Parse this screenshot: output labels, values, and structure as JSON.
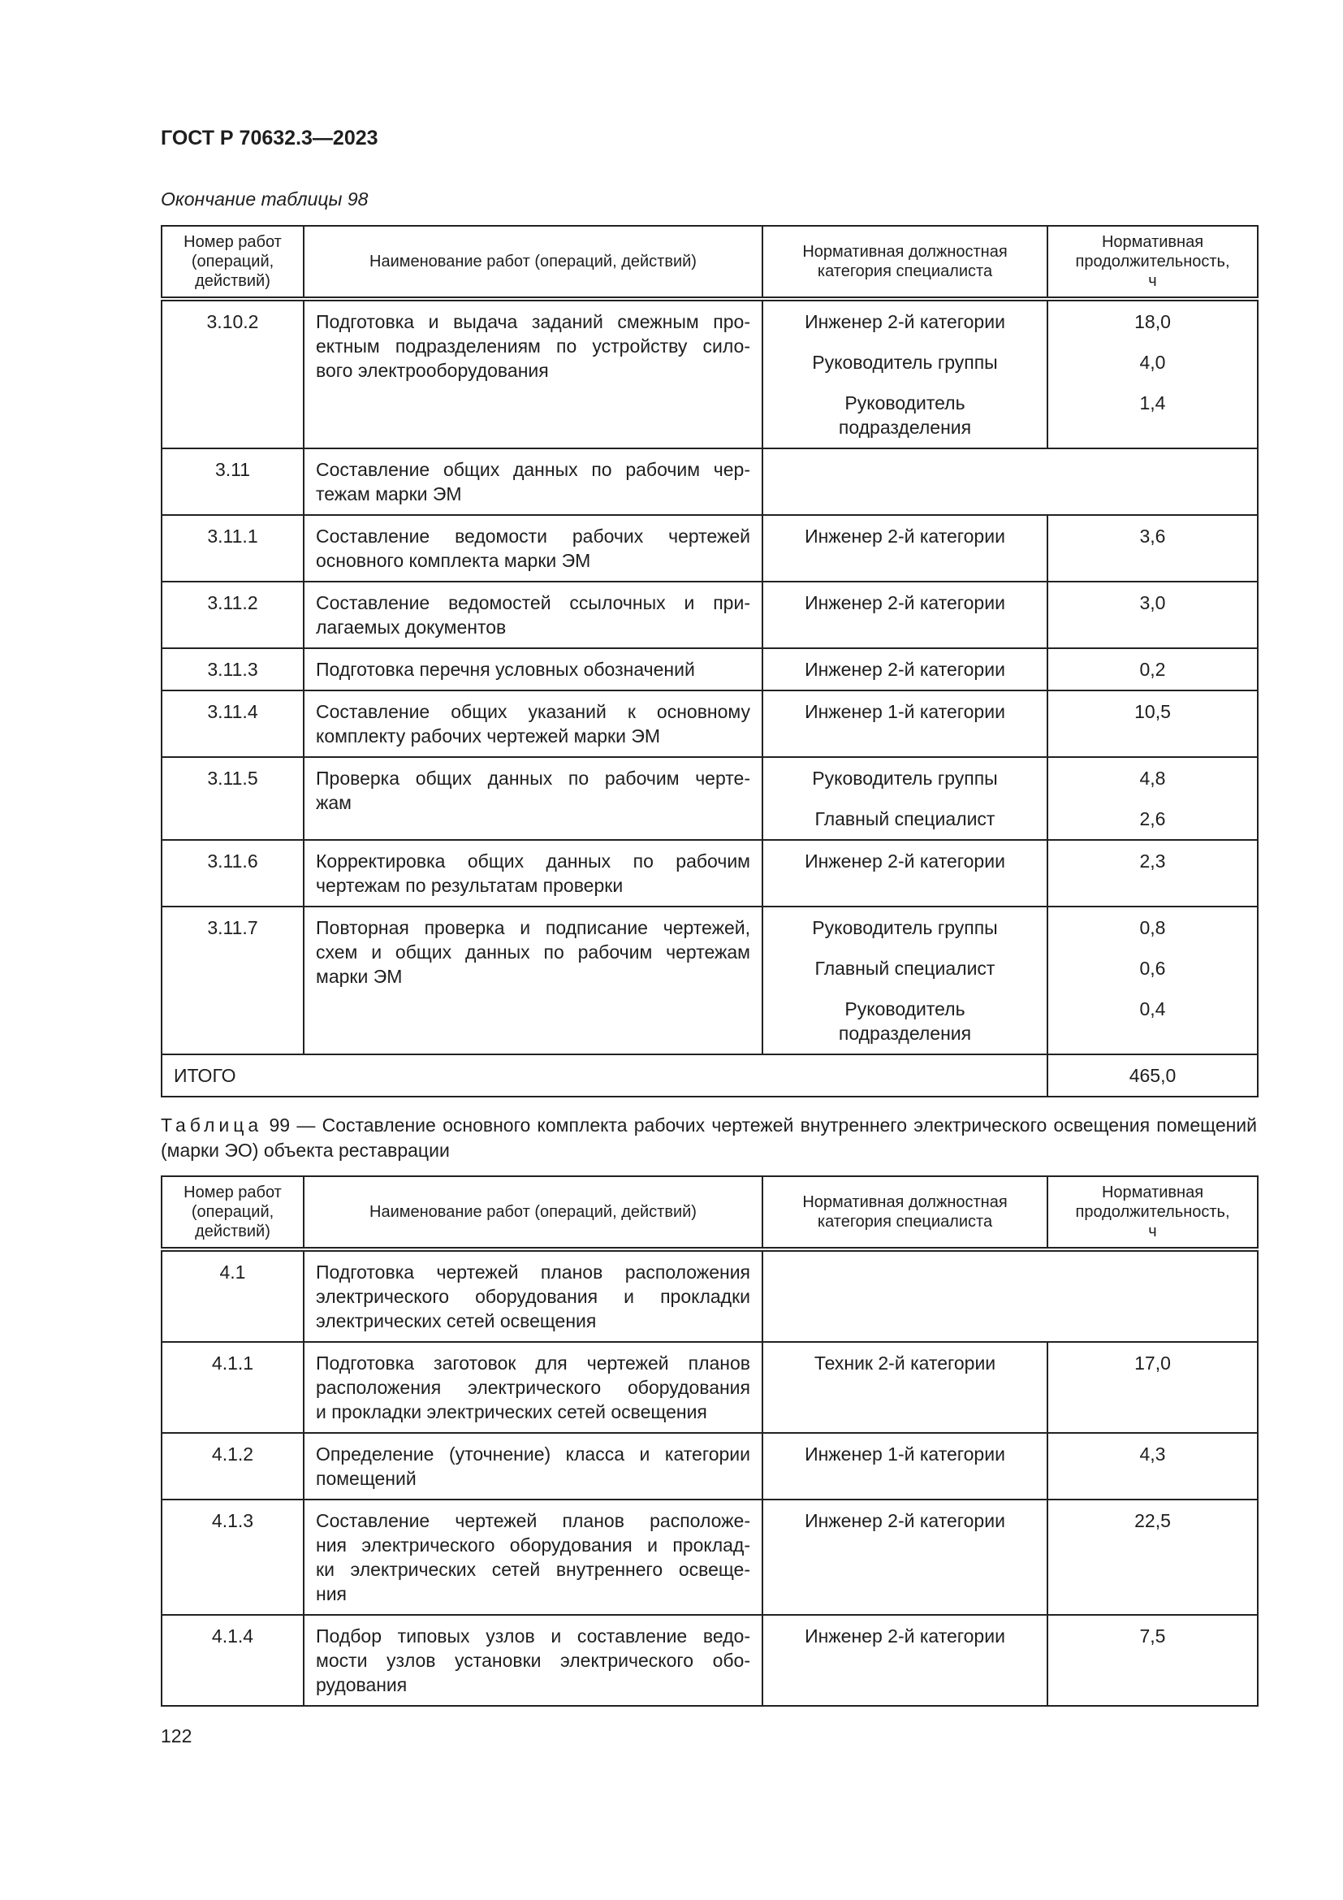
{
  "document_id": "ГОСТ Р 70632.3—2023",
  "continuation_label": "Окончание таблицы 98",
  "headers": [
    "Номер работ\n(операций,\nдействий)",
    "Наименование работ (операций, действий)",
    "Нормативная должностная\nкатегория специалиста",
    "Нормативная\nпродолжительность,\nч"
  ],
  "table98": {
    "rows": [
      {
        "num": "3.10.2",
        "name": [
          "Подготовка и выдача заданий смежным про-",
          "ектным подразделениям по устройству сило-",
          "вого электрооборудования"
        ],
        "entries": [
          {
            "role": "Инженер 2-й категории",
            "hours": "18,0"
          },
          {
            "role": "Руководитель группы",
            "hours": "4,0"
          },
          {
            "role": "Руководитель\nподразделения",
            "hours": "1,4"
          }
        ]
      },
      {
        "num": "3.11",
        "name": [
          "Составление общих данных по рабочим чер-",
          "тежам марки ЭМ"
        ],
        "entries": []
      },
      {
        "num": "3.11.1",
        "name": [
          "Составление ведомости рабочих чертежей",
          "основного комплекта марки ЭМ"
        ],
        "entries": [
          {
            "role": "Инженер 2-й категории",
            "hours": "3,6"
          }
        ]
      },
      {
        "num": "3.11.2",
        "name": [
          "Составление ведомостей ссылочных и при-",
          "лагаемых документов"
        ],
        "entries": [
          {
            "role": "Инженер 2-й категории",
            "hours": "3,0"
          }
        ]
      },
      {
        "num": "3.11.3",
        "name": [
          "Подготовка перечня условных обозначений"
        ],
        "entries": [
          {
            "role": "Инженер 2-й категории",
            "hours": "0,2"
          }
        ]
      },
      {
        "num": "3.11.4",
        "name": [
          "Составление общих указаний к основному",
          "комплекту рабочих чертежей марки ЭМ"
        ],
        "entries": [
          {
            "role": "Инженер 1-й категории",
            "hours": "10,5"
          }
        ]
      },
      {
        "num": "3.11.5",
        "name": [
          "Проверка общих данных по рабочим черте-",
          "жам"
        ],
        "entries": [
          {
            "role": "Руководитель группы",
            "hours": "4,8"
          },
          {
            "role": "Главный специалист",
            "hours": "2,6"
          }
        ]
      },
      {
        "num": "3.11.6",
        "name": [
          "Корректировка общих данных по рабочим",
          "чертежам по результатам проверки"
        ],
        "entries": [
          {
            "role": "Инженер 2-й категории",
            "hours": "2,3"
          }
        ]
      },
      {
        "num": "3.11.7",
        "name": [
          "Повторная проверка и подписание чертежей,",
          "схем и общих данных по рабочим чертежам",
          "марки ЭМ"
        ],
        "entries": [
          {
            "role": "Руководитель группы",
            "hours": "0,8"
          },
          {
            "role": "Главный специалист",
            "hours": "0,6"
          },
          {
            "role": "Руководитель\nподразделения",
            "hours": "0,4"
          }
        ]
      }
    ],
    "total_label": "ИТОГО",
    "total_value": "465,0"
  },
  "table99": {
    "caption_prefix": "Таблица",
    "caption": "99 — Составление основного комплекта рабочих чертежей внутреннего электрического освещения помещений (марки ЭО) объекта реставрации",
    "rows": [
      {
        "num": "4.1",
        "name": [
          "Подготовка чертежей планов расположения",
          "электрического оборудования и прокладки",
          "электрических сетей освещения"
        ],
        "entries": []
      },
      {
        "num": "4.1.1",
        "name": [
          "Подготовка заготовок для чертежей планов",
          "расположения электрического оборудования",
          "и прокладки электрических сетей освещения"
        ],
        "entries": [
          {
            "role": "Техник 2-й категории",
            "hours": "17,0"
          }
        ]
      },
      {
        "num": "4.1.2",
        "name": [
          "Определение (уточнение) класса и категории",
          "помещений"
        ],
        "entries": [
          {
            "role": "Инженер 1-й категории",
            "hours": "4,3"
          }
        ]
      },
      {
        "num": "4.1.3",
        "name": [
          "Составление чертежей планов расположе-",
          "ния электрического оборудования и проклад-",
          "ки электрических сетей внутреннего освеще-",
          "ния"
        ],
        "entries": [
          {
            "role": "Инженер 2-й категории",
            "hours": "22,5"
          }
        ]
      },
      {
        "num": "4.1.4",
        "name": [
          "Подбор типовых узлов и составление ведо-",
          "мости узлов установки электрического обо-",
          "рудования"
        ],
        "entries": [
          {
            "role": "Инженер 2-й категории",
            "hours": "7,5"
          }
        ]
      }
    ]
  },
  "page_number": "122"
}
